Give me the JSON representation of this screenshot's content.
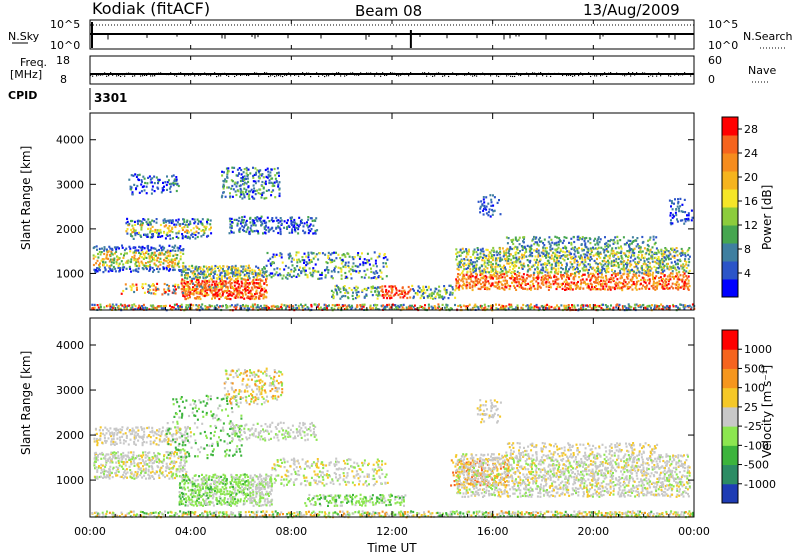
{
  "header": {
    "station": "Kodiak (fitACF)",
    "beam": "Beam 08",
    "date": "13/Aug/2009"
  },
  "top_strips": {
    "nsky_label": "N.Sky",
    "nsky_ticks": [
      "10^5",
      "10^0"
    ],
    "nsearch_label": "N.Search",
    "nsearch_ticks": [
      "10^5",
      "10^0"
    ],
    "freq_label_1": "Freq.",
    "freq_label_2": "[MHz]",
    "freq_ticks": [
      "18",
      "8"
    ],
    "nave_label": "Nave",
    "nave_ticks": [
      "60",
      "0"
    ],
    "cpid_label": "CPID",
    "cpid_value": "3301"
  },
  "chart_data": [
    {
      "type": "heatmap",
      "ylabel": "Slant Range [km]",
      "yticks": [
        "1000",
        "2000",
        "3000",
        "4000"
      ],
      "ylim": [
        180,
        4600
      ],
      "xlim": [
        "00:00",
        "24:00"
      ],
      "colorbar": {
        "label": "Power [dB]",
        "ticks": [
          "4",
          "8",
          "12",
          "16",
          "20",
          "24",
          "28"
        ],
        "range": [
          0,
          30
        ],
        "colors": [
          "#0000ff",
          "#2c55c8",
          "#3f7fa0",
          "#46a650",
          "#8ccc3c",
          "#f5e628",
          "#f5b41e",
          "#f58c1e",
          "#f5641e",
          "#ff0000"
        ]
      }
    },
    {
      "type": "heatmap",
      "ylabel": "Slant Range [km]",
      "yticks": [
        "1000",
        "2000",
        "3000",
        "4000"
      ],
      "ylim": [
        180,
        4600
      ],
      "xlabel": "Time UT",
      "xticks": [
        "00:00",
        "04:00",
        "08:00",
        "12:00",
        "16:00",
        "20:00",
        "00:00"
      ],
      "colorbar": {
        "label": "Velocity [m s⁻¹]",
        "ticks": [
          "1000",
          "500",
          "100",
          "25",
          "-25",
          "-100",
          "-500",
          "-1000"
        ],
        "colors": [
          "#1e3cb4",
          "#2c8c64",
          "#3cb43c",
          "#8ce650",
          "#c8c8c8",
          "#f5c828",
          "#f5961e",
          "#f5641e",
          "#ff0000"
        ]
      }
    }
  ]
}
